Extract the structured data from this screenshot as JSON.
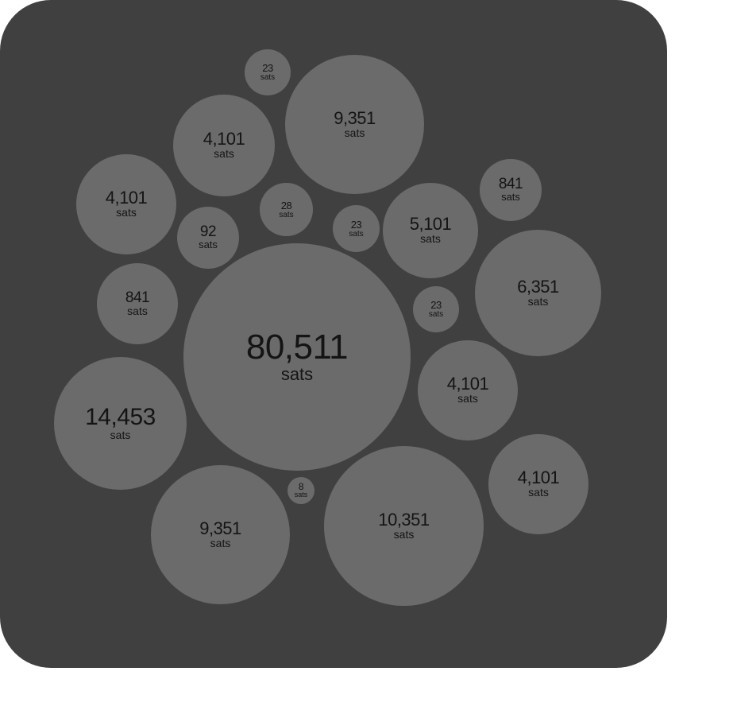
{
  "colors": {
    "panel_background": "#404040",
    "bubble_fill": "#6b6b6b",
    "text": "#141414"
  },
  "bubbles": [
    {
      "amount": "80,511",
      "unit": "sats",
      "sats": 80511
    },
    {
      "amount": "14,453",
      "unit": "sats",
      "sats": 14453
    },
    {
      "amount": "10,351",
      "unit": "sats",
      "sats": 10351
    },
    {
      "amount": "9,351",
      "unit": "sats",
      "sats": 9351
    },
    {
      "amount": "9,351",
      "unit": "sats",
      "sats": 9351
    },
    {
      "amount": "6,351",
      "unit": "sats",
      "sats": 6351
    },
    {
      "amount": "5,101",
      "unit": "sats",
      "sats": 5101
    },
    {
      "amount": "4,101",
      "unit": "sats",
      "sats": 4101
    },
    {
      "amount": "4,101",
      "unit": "sats",
      "sats": 4101
    },
    {
      "amount": "4,101",
      "unit": "sats",
      "sats": 4101
    },
    {
      "amount": "4,101",
      "unit": "sats",
      "sats": 4101
    },
    {
      "amount": "841",
      "unit": "sats",
      "sats": 841
    },
    {
      "amount": "841",
      "unit": "sats",
      "sats": 841
    },
    {
      "amount": "92",
      "unit": "sats",
      "sats": 92
    },
    {
      "amount": "28",
      "unit": "sats",
      "sats": 28
    },
    {
      "amount": "23",
      "unit": "sats",
      "sats": 23
    },
    {
      "amount": "23",
      "unit": "sats",
      "sats": 23
    },
    {
      "amount": "23",
      "unit": "sats",
      "sats": 23
    },
    {
      "amount": "8",
      "unit": "sats",
      "sats": 8
    }
  ]
}
